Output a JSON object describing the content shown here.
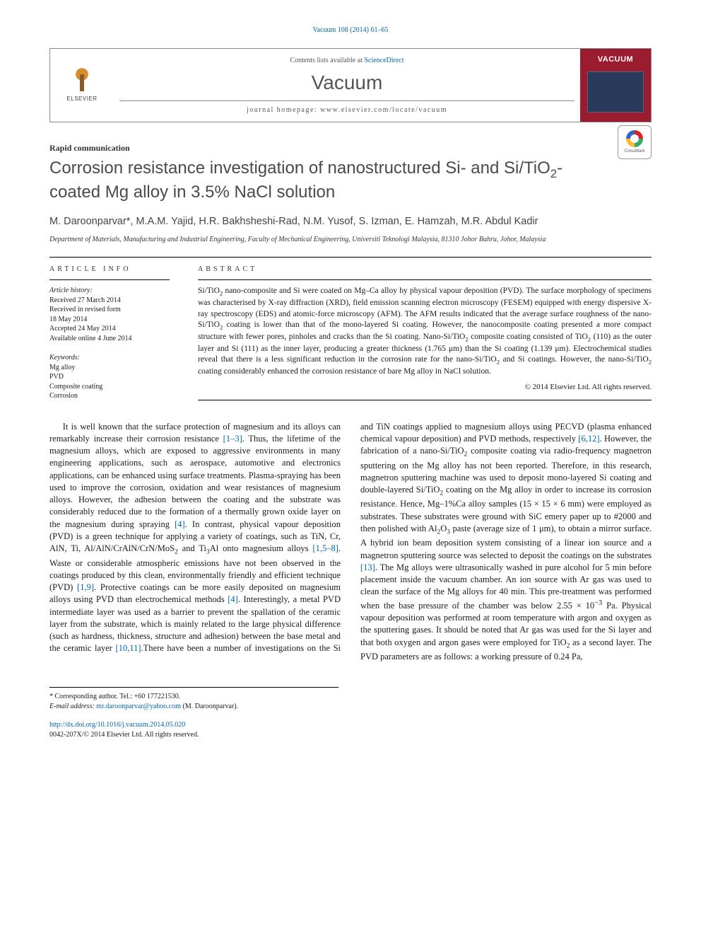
{
  "citation_line": "Vacuum 108 (2014) 61–65",
  "header": {
    "contents_prefix": "Contents lists available at ",
    "contents_link": "ScienceDirect",
    "journal": "Vacuum",
    "homepage_label": "journal homepage: ",
    "homepage_url": "www.elsevier.com/locate/vacuum",
    "publisher_word": "ELSEVIER",
    "cover_title": "VACUUM"
  },
  "section_label": "Rapid communication",
  "title_plain": "Corrosion resistance investigation of nanostructured Si- and Si/TiO2-coated Mg alloy in 3.5% NaCl solution",
  "crossmark_label": "CrossMark",
  "authors_line": "M. Daroonparvar*, M.A.M. Yajid, H.R. Bakhsheshi-Rad, N.M. Yusof, S. Izman, E. Hamzah, M.R. Abdul Kadir",
  "affiliation": "Department of Materials, Manufacturing and Industrial Engineering, Faculty of Mechanical Engineering, Universiti Teknologi Malaysia, 81310 Johor Bahru, Johor, Malaysia",
  "article_info": {
    "head": "ARTICLE INFO",
    "history_head": "Article history:",
    "history": [
      "Received 27 March 2014",
      "Received in revised form",
      "18 May 2014",
      "Accepted 24 May 2014",
      "Available online 4 June 2014"
    ],
    "keywords_head": "Keywords:",
    "keywords": [
      "Mg alloy",
      "PVD",
      "Composite coating",
      "Corrosion"
    ]
  },
  "abstract": {
    "head": "ABSTRACT",
    "text": "Si/TiO2 nano-composite and Si were coated on Mg–Ca alloy by physical vapour deposition (PVD). The surface morphology of specimens was characterised by X-ray diffraction (XRD), field emission scanning electron microscopy (FESEM) equipped with energy dispersive X-ray spectroscopy (EDS) and atomic-force microscopy (AFM). The AFM results indicated that the average surface roughness of the nano-Si/TiO2 coating is lower than that of the mono-layered Si coating. However, the nanocomposite coating presented a more compact structure with fewer pores, pinholes and cracks than the Si coating. Nano-Si/TiO2 composite coating consisted of TiO2 (110) as the outer layer and Si (111) as the inner layer, producing a greater thickness (1.765 μm) than the Si coating (1.139 μm). Electrochemical studies reveal that there is a less significant reduction in the corrosion rate for the nano-Si/TiO2 and Si coatings. However, the nano-Si/TiO2 coating considerably enhanced the corrosion resistance of bare Mg alloy in NaCl solution.",
    "copyright": "© 2014 Elsevier Ltd. All rights reserved."
  },
  "body": {
    "para1_a": "It is well known that the surface protection of magnesium and its alloys can remarkably increase their corrosion resistance ",
    "ref1": "[1–3]",
    "para1_b": ". Thus, the lifetime of the magnesium alloys, which are exposed to aggressive environments in many engineering applications, such as aerospace, automotive and electronics applications, can be enhanced using surface treatments. Plasma-spraying has been used to improve the corrosion, oxidation and wear resistances of magnesium alloys. However, the adhesion between the coating and the substrate was considerably reduced due to the formation of a thermally grown oxide layer on the magnesium during spraying ",
    "ref2": "[4]",
    "para1_c": ". In contrast, physical vapour deposition (PVD) is a green technique for applying a variety of coatings, such as TiN, Cr, AlN, Ti, Al/AlN/CrAlN/CrN/MoS2 and Ti3Al onto magnesium alloys ",
    "ref3": "[1,5–8]",
    "para1_d": ". Waste or considerable atmospheric emissions have not been observed in the coatings produced by this clean, environmentally friendly and efficient technique (PVD) ",
    "ref4": "[1,9]",
    "para1_e": ". Protective coatings can be more easily deposited on magnesium alloys using PVD than electrochemical methods ",
    "ref5": "[4]",
    "para1_f": ". Interestingly, a metal PVD intermediate layer was used as a barrier to prevent the spallation of the ceramic layer from the substrate, which is mainly related to the large physical difference (such as hardness, thickness, structure and ",
    "para2_a": "adhesion) between the base metal and the ceramic layer ",
    "ref6": "[10,11]",
    "para2_b": ".There have been a number of investigations on the Si and TiN coatings applied to magnesium alloys using PECVD (plasma enhanced chemical vapour deposition) and PVD methods, respectively ",
    "ref7": "[6,12]",
    "para2_c": ". However, the fabrication of a nano-Si/TiO2 composite coating via radio-frequency magnetron sputtering on the Mg alloy has not been reported. Therefore, in this research, magnetron sputtering machine was used to deposit mono-layered Si coating and double-layered Si/TiO2 coating on the Mg alloy in order to increase its corrosion resistance. Hence, Mg–1%Ca alloy samples (15 × 15 × 6 mm) were employed as substrates. These substrates were ground with SiC emery paper up to #2000 and then polished with Al2O3 paste (average size of 1 μm), to obtain a mirror surface. A hybrid ion beam deposition system consisting of a linear ion source and a magnetron sputtering source was selected to deposit the coatings on the substrates ",
    "ref8": "[13]",
    "para2_d": ". The Mg alloys were ultrasonically washed in pure alcohol for 5 min before placement inside the vacuum chamber. An ion source with Ar gas was used to clean the surface of the Mg alloys for 40 min. This pre-treatment was performed when the base pressure of the chamber was below 2.55 × 10−3 Pa. Physical vapour deposition was performed at room temperature with argon and oxygen as the sputtering gases. It should be noted that Ar gas was used for the Si layer and that both oxygen and argon gases were employed for TiO2 as a second layer. The PVD parameters are as follows: a working pressure of 0.24 Pa,"
  },
  "footnotes": {
    "corr_label": "* Corresponding author. Tel.: +60 177221530.",
    "email_label": "E-mail address: ",
    "email": "mr.daroonparvar@yahoo.com",
    "email_suffix": " (M. Daroonparvar)."
  },
  "bottom": {
    "doi": "http://dx.doi.org/10.1016/j.vacuum.2014.05.020",
    "issn_line": "0042-207X/© 2014 Elsevier Ltd. All rights reserved."
  },
  "colors": {
    "link": "#0066aa",
    "cover_bg": "#9b1c2e",
    "text": "#1a1a1a"
  }
}
